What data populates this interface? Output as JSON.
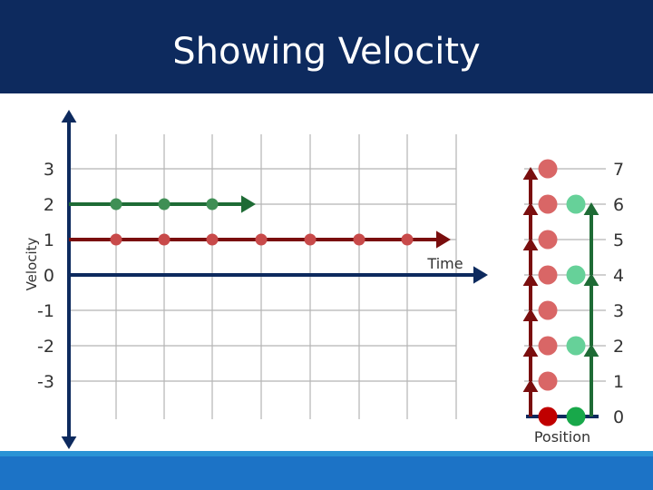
{
  "slide": {
    "title": "Showing Velocity"
  },
  "velocity_chart": {
    "y_axis_label": "Velocity",
    "x_axis_label": "Time",
    "y_ticks": [
      "3",
      "2",
      "1",
      "0",
      "-1",
      "-2",
      "-3"
    ],
    "series": [
      {
        "velocity": 2,
        "dot_count": 3,
        "color": "#1e6b35",
        "dot_color": "#3f8f55"
      },
      {
        "velocity": 1,
        "dot_count": 7,
        "color": "#7a0e0e",
        "dot_color": "#c84a4a"
      }
    ]
  },
  "position_chart": {
    "x_axis_label": "Position",
    "ticks": [
      "7",
      "6",
      "5",
      "4",
      "3",
      "2",
      "1",
      "0"
    ],
    "columns": [
      {
        "name": "red",
        "positions": [
          0,
          1,
          2,
          3,
          4,
          5,
          6,
          7
        ],
        "start_color": "#c00000",
        "dot_color": "#d96666",
        "arrow_color": "#7a0e0e"
      },
      {
        "name": "green",
        "positions": [
          0,
          2,
          4,
          6
        ],
        "start_color": "#18a84a",
        "dot_color": "#66d199",
        "arrow_color": "#1e6b35"
      }
    ]
  },
  "colors": {
    "title_bar": "#0d2a5e",
    "axis": "#0d2a5e",
    "grid": "#b5b5b5",
    "footer_strip": "#2a93d5",
    "footer_bar": "#1c73c6"
  }
}
